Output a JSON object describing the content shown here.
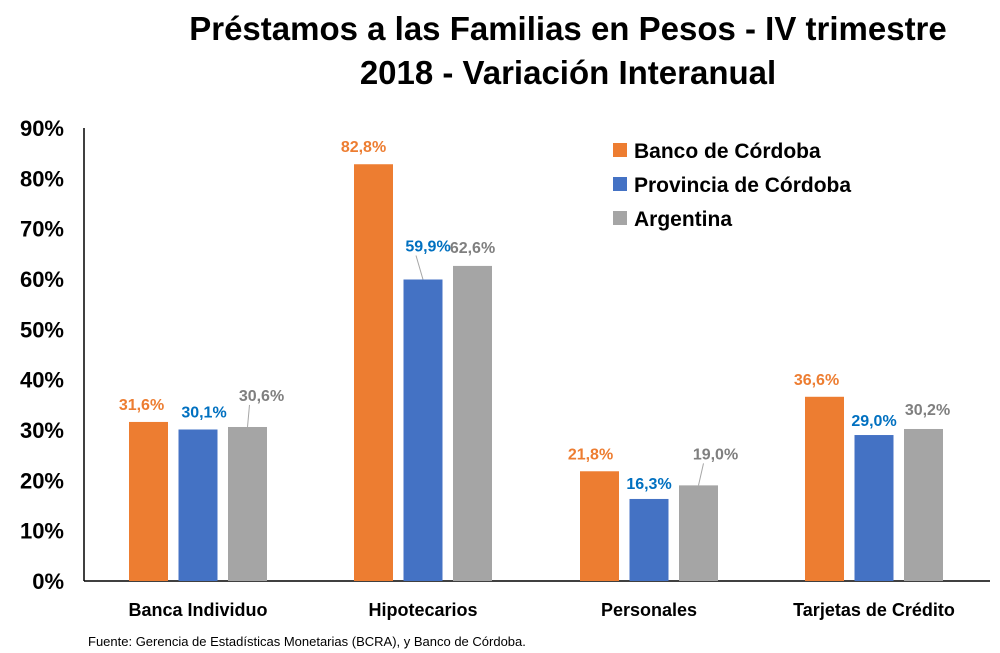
{
  "chart_data": {
    "type": "bar",
    "title_line1": "Préstamos a las Familias en Pesos - IV trimestre",
    "title_line2": "2018 - Variación Interanual",
    "categories": [
      "Banca Individuo",
      "Hipotecarios",
      "Personales",
      "Tarjetas de Crédito"
    ],
    "series": [
      {
        "name": "Banco de Córdoba",
        "values": [
          31.6,
          82.8,
          21.8,
          36.6
        ],
        "labels": [
          "31,6%",
          "82,8%",
          "21,8%",
          "36,6%"
        ],
        "color": "#ED7D31",
        "label_color": "#ED7D31"
      },
      {
        "name": "Provincia de Córdoba",
        "values": [
          30.1,
          59.9,
          16.3,
          29.0
        ],
        "labels": [
          "30,1%",
          "59,9%",
          "16,3%",
          "29,0%"
        ],
        "color": "#4472C4",
        "label_color": "#0070C0"
      },
      {
        "name": "Argentina",
        "values": [
          30.6,
          62.6,
          19.0,
          30.2
        ],
        "labels": [
          "30,6%",
          "62,6%",
          "19,0%",
          "30,2%"
        ],
        "color": "#A5A5A5",
        "label_color": "#7F7F7F"
      }
    ],
    "yticks": [
      "0%",
      "10%",
      "20%",
      "30%",
      "40%",
      "50%",
      "60%",
      "70%",
      "80%",
      "90%"
    ],
    "ylim": [
      0,
      90
    ],
    "grid": false,
    "legend_position": "top-right",
    "xlabel": "",
    "ylabel": ""
  },
  "source": "Fuente: Gerencia de Estadísticas Monetarias (BCRA), y Banco de Córdoba."
}
